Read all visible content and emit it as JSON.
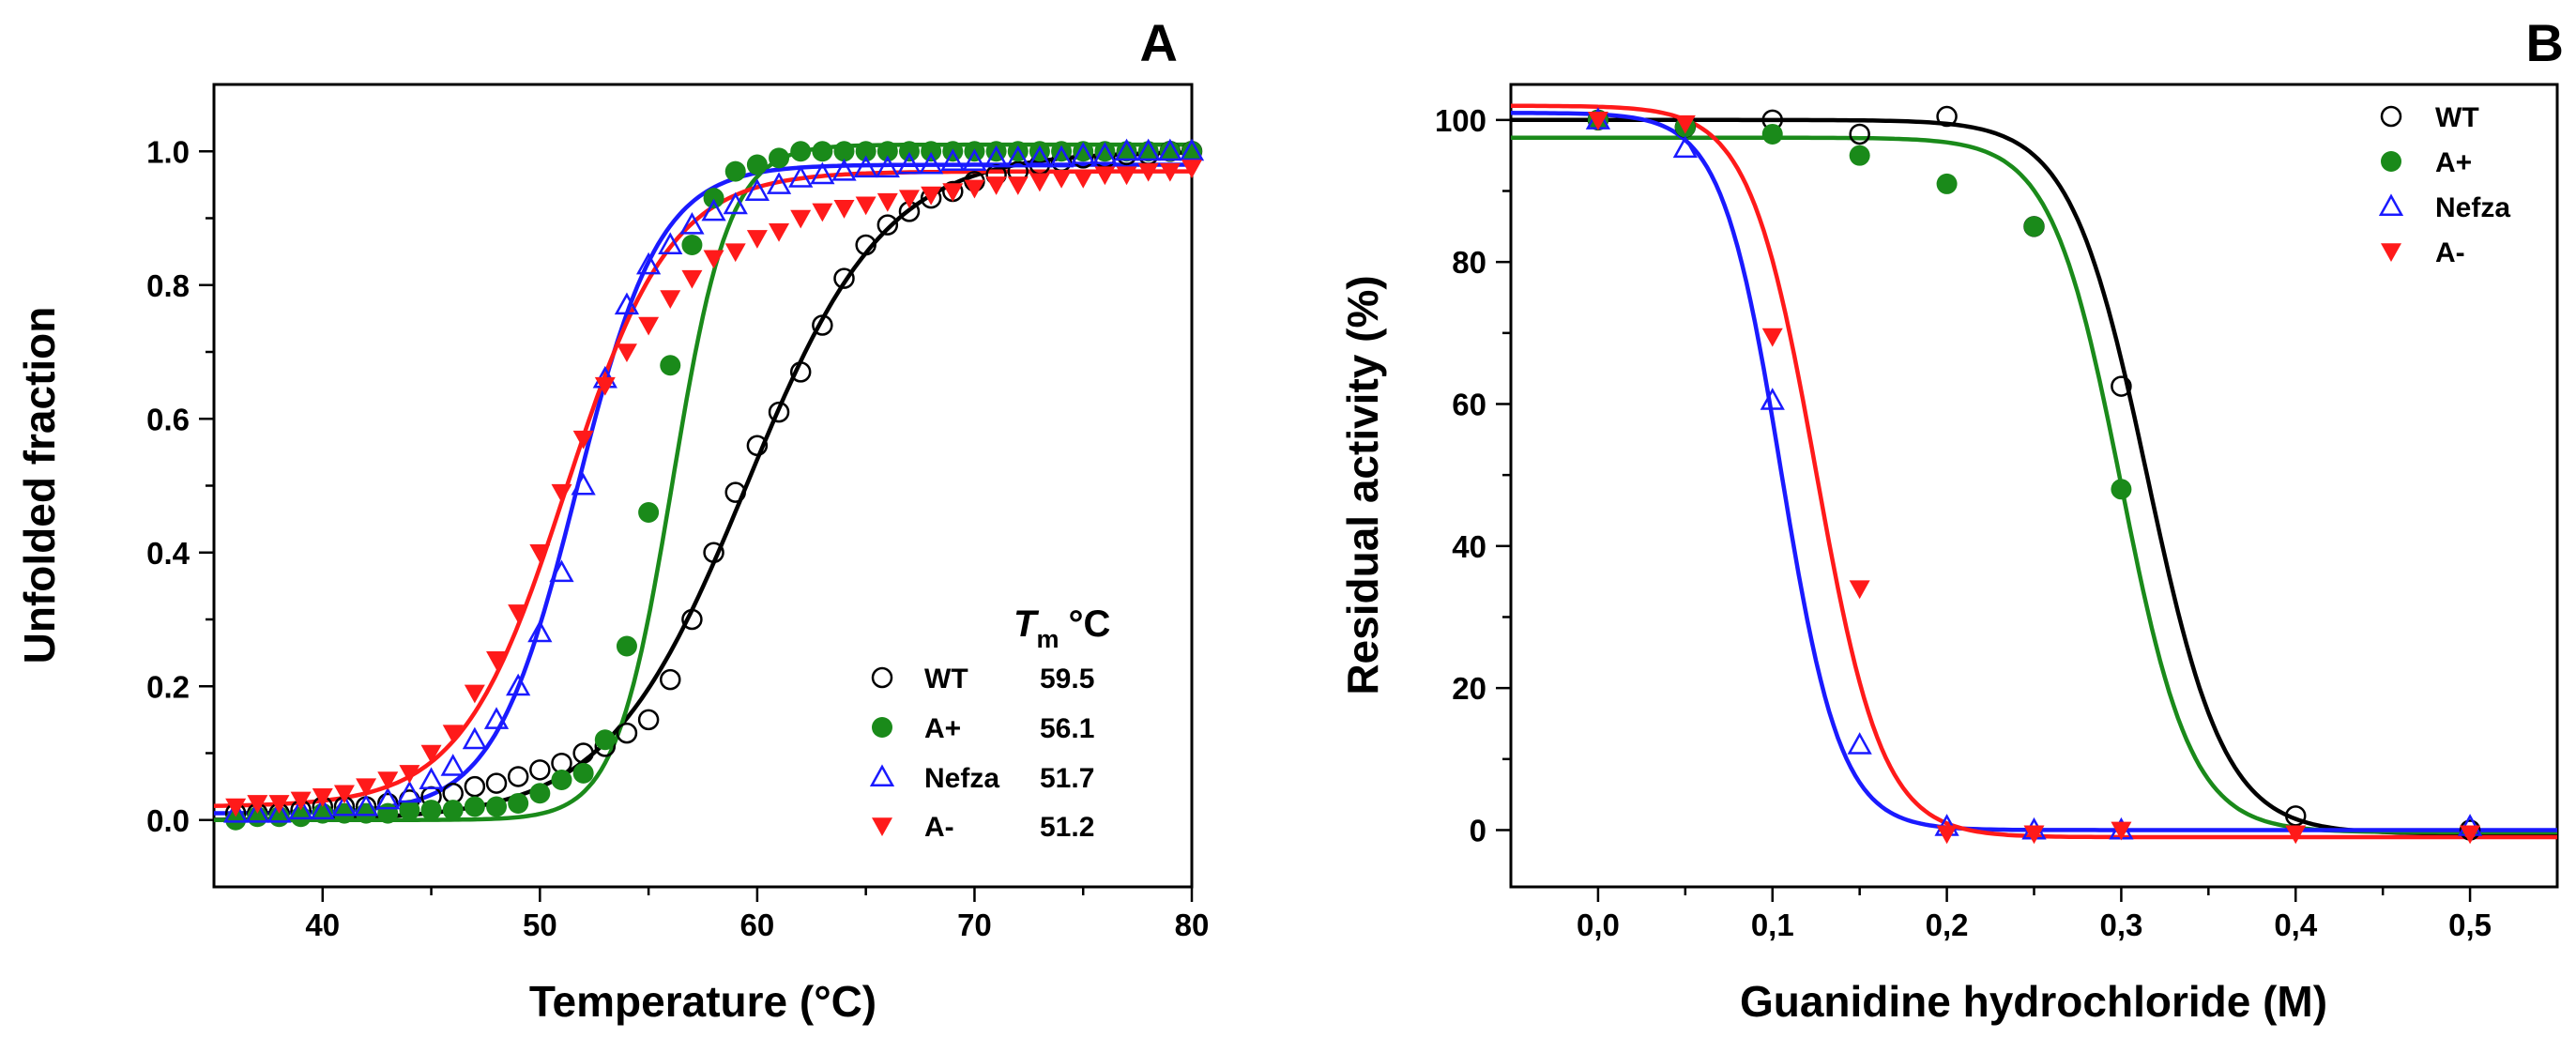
{
  "chart_data": [
    {
      "panel": "A",
      "type": "scatter",
      "xlabel": "Temperature (°C)",
      "ylabel": "Unfolded fraction",
      "xlim": [
        35,
        80
      ],
      "ylim": [
        -0.1,
        1.1
      ],
      "xticks": [
        40,
        50,
        60,
        70,
        80
      ],
      "xtick_labels": [
        "40",
        "50",
        "60",
        "70",
        "80"
      ],
      "yticks": [
        0.0,
        0.2,
        0.4,
        0.6,
        0.8,
        1.0
      ],
      "ytick_labels": [
        "0.0",
        "0.2",
        "0.4",
        "0.6",
        "0.8",
        "1.0"
      ],
      "legend": {
        "position": "bottom-right",
        "header_symbol": "T",
        "header_subscript": "m",
        "header_unit": "°C"
      },
      "series": [
        {
          "name": "WT",
          "tm_label": "59.5",
          "marker": "open-circle",
          "color": "#000000",
          "fit": {
            "model": "sigmoid",
            "bottom": 0.0,
            "top": 1.0,
            "midpoint": 59.5,
            "slope": 3.2
          },
          "x": [
            36,
            37,
            38,
            39,
            40,
            41,
            42,
            43,
            44,
            45,
            46,
            47,
            48,
            49,
            50,
            51,
            52,
            53,
            54,
            55,
            56,
            57,
            58,
            59,
            60,
            61,
            62,
            63,
            64,
            65,
            66,
            67,
            68,
            69,
            70,
            71,
            72,
            73,
            74,
            75,
            76,
            77,
            78,
            79,
            80
          ],
          "y": [
            0.01,
            0.01,
            0.01,
            0.015,
            0.02,
            0.02,
            0.02,
            0.025,
            0.03,
            0.035,
            0.04,
            0.05,
            0.055,
            0.065,
            0.075,
            0.085,
            0.1,
            0.11,
            0.13,
            0.15,
            0.21,
            0.3,
            0.4,
            0.49,
            0.56,
            0.61,
            0.67,
            0.74,
            0.81,
            0.86,
            0.89,
            0.91,
            0.93,
            0.94,
            0.955,
            0.965,
            0.97,
            0.98,
            0.985,
            0.99,
            0.99,
            0.995,
            0.995,
            1.0,
            1.0
          ]
        },
        {
          "name": "A+",
          "tm_label": "56.1",
          "marker": "filled-circle",
          "color": "#1a8a1a",
          "fit": {
            "model": "sigmoid",
            "bottom": 0.0,
            "top": 1.01,
            "midpoint": 56.1,
            "slope": 1.3
          },
          "x": [
            36,
            37,
            38,
            39,
            40,
            41,
            42,
            43,
            44,
            45,
            46,
            47,
            48,
            49,
            50,
            51,
            52,
            53,
            54,
            55,
            56,
            57,
            58,
            59,
            60,
            61,
            62,
            63,
            64,
            65,
            66,
            67,
            68,
            69,
            70,
            71,
            72,
            73,
            74,
            75,
            76,
            77,
            78,
            79,
            80
          ],
          "y": [
            0.0,
            0.005,
            0.005,
            0.005,
            0.01,
            0.01,
            0.01,
            0.01,
            0.015,
            0.015,
            0.015,
            0.02,
            0.02,
            0.025,
            0.04,
            0.06,
            0.07,
            0.12,
            0.26,
            0.46,
            0.68,
            0.86,
            0.93,
            0.97,
            0.98,
            0.99,
            1.0,
            1.0,
            1.0,
            1.0,
            1.0,
            1.0,
            1.0,
            1.0,
            1.0,
            1.0,
            1.0,
            1.0,
            1.0,
            1.0,
            1.0,
            1.0,
            1.0,
            1.0,
            1.0
          ]
        },
        {
          "name": "Nefza",
          "tm_label": "51.7",
          "marker": "open-triangle-up",
          "color": "#1a1aff",
          "fit": {
            "model": "sigmoid",
            "bottom": 0.01,
            "top": 0.98,
            "midpoint": 51.7,
            "slope": 1.9
          },
          "x": [
            36,
            37,
            38,
            39,
            40,
            41,
            42,
            43,
            44,
            45,
            46,
            47,
            48,
            49,
            50,
            51,
            52,
            53,
            54,
            55,
            56,
            57,
            58,
            59,
            60,
            61,
            62,
            63,
            64,
            65,
            66,
            67,
            68,
            69,
            70,
            71,
            72,
            73,
            74,
            75,
            76,
            77,
            78,
            79,
            80
          ],
          "y": [
            0.01,
            0.01,
            0.01,
            0.015,
            0.015,
            0.02,
            0.02,
            0.03,
            0.04,
            0.06,
            0.08,
            0.12,
            0.15,
            0.2,
            0.28,
            0.37,
            0.5,
            0.66,
            0.77,
            0.83,
            0.86,
            0.89,
            0.91,
            0.92,
            0.94,
            0.95,
            0.96,
            0.965,
            0.97,
            0.975,
            0.975,
            0.98,
            0.98,
            0.985,
            0.985,
            0.99,
            0.99,
            0.99,
            0.99,
            0.995,
            0.995,
            1.0,
            1.0,
            1.0,
            1.0
          ]
        },
        {
          "name": "A-",
          "tm_label": "51.2",
          "marker": "filled-triangle-down",
          "color": "#ff1a1a",
          "fit": {
            "model": "sigmoid",
            "bottom": 0.02,
            "top": 0.97,
            "midpoint": 51.2,
            "slope": 2.4
          },
          "x": [
            36,
            37,
            38,
            39,
            40,
            41,
            42,
            43,
            44,
            45,
            46,
            47,
            48,
            49,
            50,
            51,
            52,
            53,
            54,
            55,
            56,
            57,
            58,
            59,
            60,
            61,
            62,
            63,
            64,
            65,
            66,
            67,
            68,
            69,
            70,
            71,
            72,
            73,
            74,
            75,
            76,
            77,
            78,
            79,
            80
          ],
          "y": [
            0.02,
            0.025,
            0.025,
            0.03,
            0.035,
            0.04,
            0.05,
            0.06,
            0.07,
            0.1,
            0.13,
            0.19,
            0.24,
            0.31,
            0.4,
            0.49,
            0.57,
            0.65,
            0.7,
            0.74,
            0.78,
            0.81,
            0.84,
            0.85,
            0.87,
            0.88,
            0.9,
            0.91,
            0.915,
            0.92,
            0.925,
            0.93,
            0.935,
            0.94,
            0.945,
            0.95,
            0.95,
            0.955,
            0.96,
            0.96,
            0.965,
            0.965,
            0.97,
            0.97,
            0.975
          ]
        }
      ]
    },
    {
      "panel": "B",
      "type": "scatter",
      "xlabel": "Guanidine hydrochloride (M)",
      "ylabel": "Residual activity (%)",
      "xlim": [
        -0.05,
        0.55
      ],
      "ylim": [
        -8,
        105
      ],
      "xticks": [
        0.0,
        0.1,
        0.2,
        0.3,
        0.4,
        0.5
      ],
      "xtick_labels": [
        "0,0",
        "0,1",
        "0,2",
        "0,3",
        "0,4",
        "0,5"
      ],
      "yticks": [
        0,
        20,
        40,
        60,
        80,
        100
      ],
      "ytick_labels": [
        "0",
        "20",
        "40",
        "60",
        "80",
        "100"
      ],
      "legend": {
        "position": "top-right"
      },
      "series": [
        {
          "name": "WT",
          "marker": "open-circle",
          "color": "#000000",
          "fit": {
            "model": "sigmoid",
            "bottom": 100,
            "top": -0.5,
            "midpoint": 0.315,
            "slope": 0.022
          },
          "x": [
            0.0,
            0.05,
            0.1,
            0.15,
            0.2,
            0.25,
            0.3,
            0.4,
            0.5
          ],
          "y": [
            100,
            99,
            100,
            98,
            100.5,
            85,
            62.5,
            2,
            0
          ]
        },
        {
          "name": "A+",
          "marker": "filled-circle",
          "color": "#1a8a1a",
          "fit": {
            "model": "sigmoid",
            "bottom": 97.5,
            "top": -0.3,
            "midpoint": 0.3,
            "slope": 0.02
          },
          "x": [
            0.0,
            0.05,
            0.1,
            0.15,
            0.2,
            0.25,
            0.3
          ],
          "y": [
            100,
            99,
            98,
            95,
            91,
            85,
            48
          ]
        },
        {
          "name": "Nefza",
          "marker": "open-triangle-up",
          "color": "#1a1aff",
          "fit": {
            "model": "sigmoid",
            "bottom": 101,
            "top": 0,
            "midpoint": 0.105,
            "slope": 0.017
          },
          "x": [
            0.0,
            0.05,
            0.1,
            0.15,
            0.2,
            0.25,
            0.3,
            0.5
          ],
          "y": [
            100,
            96,
            60.5,
            12,
            0.5,
            0,
            0,
            0.5
          ]
        },
        {
          "name": "A-",
          "marker": "filled-triangle-down",
          "color": "#ff1a1a",
          "fit": {
            "model": "sigmoid",
            "bottom": 102,
            "top": -1,
            "midpoint": 0.125,
            "slope": 0.019
          },
          "x": [
            0.0,
            0.05,
            0.1,
            0.15,
            0.2,
            0.25,
            0.3,
            0.4,
            0.5
          ],
          "y": [
            100,
            99.5,
            69.5,
            34,
            -0.5,
            -0.5,
            0,
            -0.5,
            -0.5
          ]
        }
      ]
    }
  ]
}
